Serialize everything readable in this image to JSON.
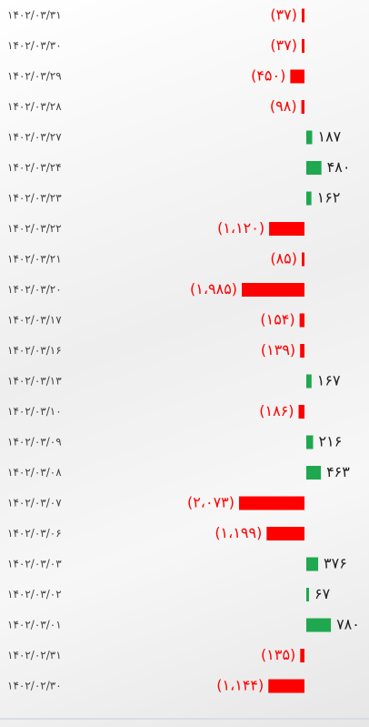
{
  "chart_data": {
    "type": "diverging-bar",
    "categories": [
      "۱۴۰۲/۰۳/۳۱",
      "۱۴۰۲/۰۳/۳۰",
      "۱۴۰۲/۰۳/۲۹",
      "۱۴۰۲/۰۳/۲۸",
      "۱۴۰۲/۰۳/۲۷",
      "۱۴۰۲/۰۳/۲۴",
      "۱۴۰۲/۰۳/۲۳",
      "۱۴۰۲/۰۳/۲۲",
      "۱۴۰۲/۰۳/۲۱",
      "۱۴۰۲/۰۳/۲۰",
      "۱۴۰۲/۰۳/۱۷",
      "۱۴۰۲/۰۳/۱۶",
      "۱۴۰۲/۰۳/۱۳",
      "۱۴۰۲/۰۳/۱۰",
      "۱۴۰۲/۰۳/۰۹",
      "۱۴۰۲/۰۳/۰۸",
      "۱۴۰۲/۰۳/۰۷",
      "۱۴۰۲/۰۳/۰۶",
      "۱۴۰۲/۰۳/۰۳",
      "۱۴۰۲/۰۳/۰۲",
      "۱۴۰۲/۰۳/۰۱",
      "۱۴۰۲/۰۲/۳۱",
      "۱۴۰۲/۰۲/۳۰"
    ],
    "values": [
      -37,
      -37,
      -450,
      -98,
      187,
      480,
      162,
      -1120,
      -85,
      -1985,
      -154,
      -139,
      167,
      -186,
      216,
      463,
      -2073,
      -1199,
      376,
      67,
      780,
      -135,
      -1144
    ],
    "value_labels": [
      "(۳۷)",
      "(۳۷)",
      "(۴۵۰)",
      "(۹۸)",
      "۱۸۷",
      "۴۸۰",
      "۱۶۲",
      "(۱،۱۲۰)",
      "(۸۵)",
      "(۱،۹۸۵)",
      "(۱۵۴)",
      "(۱۳۹)",
      "۱۶۷",
      "(۱۸۶)",
      "۲۱۶",
      "۴۶۳",
      "(۲،۰۷۳)",
      "(۱،۱۹۹)",
      "۳۷۶",
      "۶۷",
      "۷۸۰",
      "(۱۳۵)",
      "(۱،۱۴۴)"
    ],
    "negative_color": "#ff0000",
    "positive_color": "#1fa84f"
  }
}
